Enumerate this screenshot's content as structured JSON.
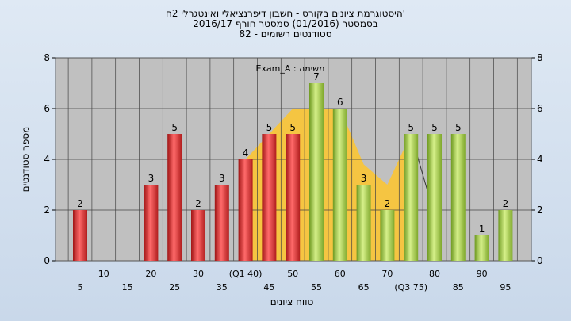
{
  "chart_data": {
    "type": "bar",
    "title_lines": [
      "'היסטוגרמת ציונים בקורס - חשבון דיפרנציאלי ואינטגרלי 2ח",
      "בסמסטר  (01/2016)  סמסטר חורף 2016/17",
      "סטודנטים רשומים - 82"
    ],
    "ylabel": "מספר סטודנטים",
    "xlabel": "טווח ציונים",
    "annotation": "משימה : Exam_A",
    "ylim": [
      0,
      8
    ],
    "yticks": [
      0,
      2,
      4,
      6,
      8
    ],
    "grid": true,
    "categories": [
      "5",
      "10",
      "15",
      "20",
      "25",
      "30",
      "35",
      "40",
      "45",
      "50",
      "55",
      "60",
      "65",
      "70",
      "75",
      "80",
      "85",
      "90",
      "95"
    ],
    "tick_labels": [
      "5",
      "10",
      "15",
      "20",
      "25",
      "30",
      "35",
      "(Q1 40)",
      "45",
      "50",
      "55",
      "60",
      "65",
      "70",
      "(Q3 75)",
      "80",
      "85",
      "90",
      "95"
    ],
    "values": [
      2,
      0,
      0,
      3,
      5,
      2,
      3,
      4,
      5,
      5,
      7,
      6,
      3,
      2,
      5,
      5,
      5,
      1,
      2
    ],
    "bar_colors_by_category": [
      "red",
      "red",
      "red",
      "red",
      "red",
      "red",
      "red",
      "red",
      "red",
      "red",
      "green",
      "green",
      "green",
      "green",
      "green",
      "green",
      "green",
      "green",
      "green"
    ],
    "colors": {
      "red_bar": "#d42a2a",
      "green_bar": "#8fbf3a",
      "area_fill": "#f5c542",
      "plot_bg": "#c0c0c0",
      "grid": "#444444"
    },
    "background_area": {
      "x_start": 40,
      "x_end": 75,
      "points": [
        [
          40,
          4
        ],
        [
          45,
          5
        ],
        [
          50,
          6
        ],
        [
          55,
          6
        ],
        [
          60,
          6
        ],
        [
          65,
          3.8
        ],
        [
          70,
          3
        ],
        [
          75,
          5
        ],
        [
          75,
          0
        ]
      ]
    },
    "trend_line": [
      [
        75,
        5
      ],
      [
        80,
        1.8
      ]
    ]
  }
}
